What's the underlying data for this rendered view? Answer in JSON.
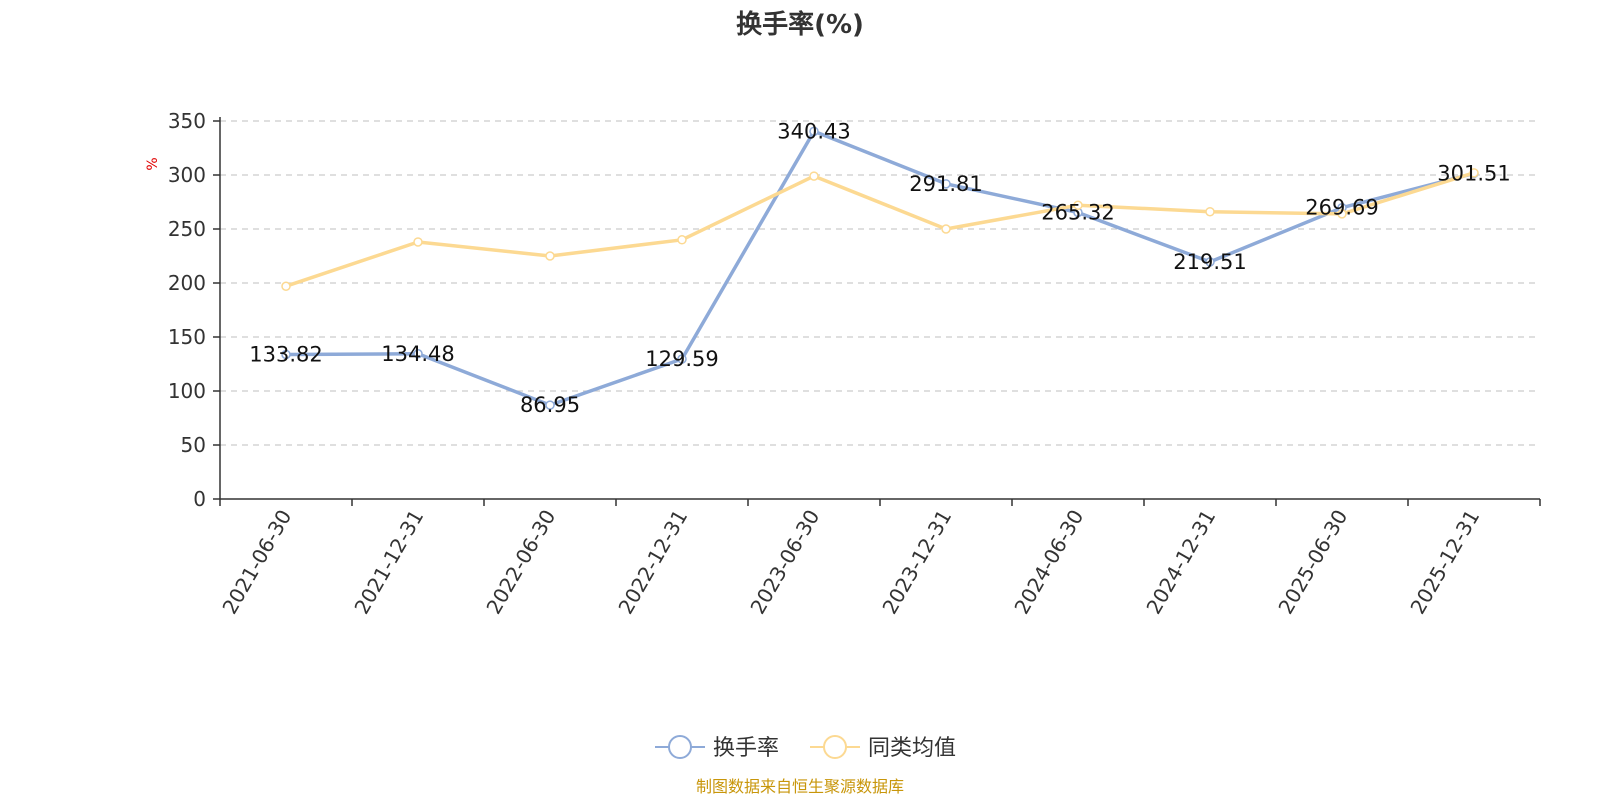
{
  "chart_data": {
    "type": "line",
    "title": "换手率(%)",
    "ylabel": "%",
    "xlabel": "",
    "ylim": [
      0,
      350
    ],
    "yticks": [
      0,
      50,
      100,
      150,
      200,
      250,
      300,
      350
    ],
    "categories": [
      "2021-06-30",
      "2021-12-31",
      "2022-06-30",
      "2022-12-31",
      "2023-06-30",
      "2023-12-31",
      "2024-06-30",
      "2024-12-31",
      "2025-06-30",
      "2025-12-31"
    ],
    "grid": "horizontal-dashed",
    "legend_position": "bottom-center",
    "series": [
      {
        "name": "换手率",
        "color": "#8eaad8",
        "values": [
          133.82,
          134.48,
          86.95,
          129.59,
          340.43,
          291.81,
          265.32,
          219.51,
          269.69,
          301.51
        ],
        "labels": [
          "133.82",
          "134.48",
          "86.95",
          "129.59",
          "340.43",
          "291.81",
          "265.32",
          "219.51",
          "269.69",
          "301.51"
        ]
      },
      {
        "name": "同类均值",
        "color": "#fcd992",
        "values": [
          197,
          238,
          225,
          240,
          299,
          250,
          272,
          266,
          264,
          302
        ]
      }
    ]
  },
  "footer": {
    "source": "制图数据来自恒生聚源数据库"
  }
}
